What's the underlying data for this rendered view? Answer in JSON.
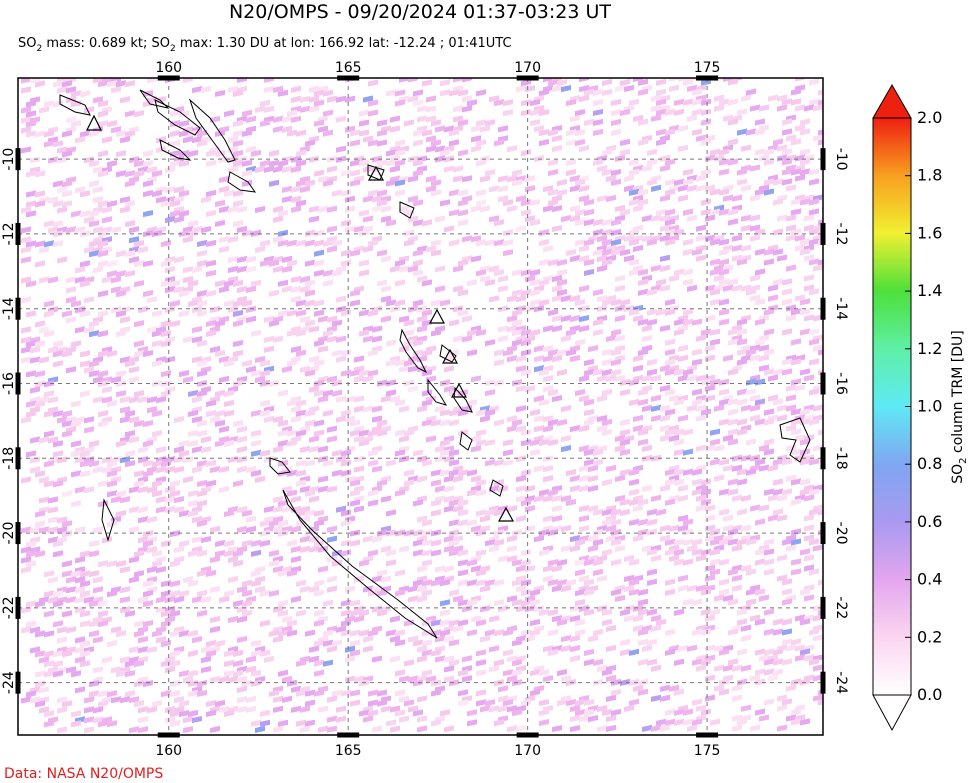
{
  "header": {
    "title": "N20/OMPS - 09/20/2024 01:37-03:23 UT",
    "subtitle_parts": [
      "SO",
      "2",
      " mass: 0.689 kt; SO",
      "2",
      " max: 1.30 DU at lon: 166.92 lat: -12.24 ; 01:41UTC"
    ]
  },
  "map": {
    "xlim": [
      155.8,
      178.23
    ],
    "ylim": [
      -25.4,
      -7.83
    ],
    "xticks": [
      160,
      165,
      170,
      175
    ],
    "yticks": [
      -10,
      -12,
      -14,
      -16,
      -18,
      -20,
      -22,
      -24
    ],
    "grid": true
  },
  "colorbar": {
    "label_parts": [
      "SO",
      "2",
      " column TRM [DU]"
    ],
    "lim": [
      0,
      2
    ],
    "ticks": [
      {
        "value": 0,
        "label": "0.0"
      },
      0.2,
      0.4,
      0.6,
      0.8,
      {
        "value": 1,
        "label": "1.0"
      },
      1.2,
      1.4,
      1.6,
      1.8,
      {
        "value": 2,
        "label": "2.0"
      }
    ]
  },
  "footer": "Data: NASA N20/OMPS"
}
